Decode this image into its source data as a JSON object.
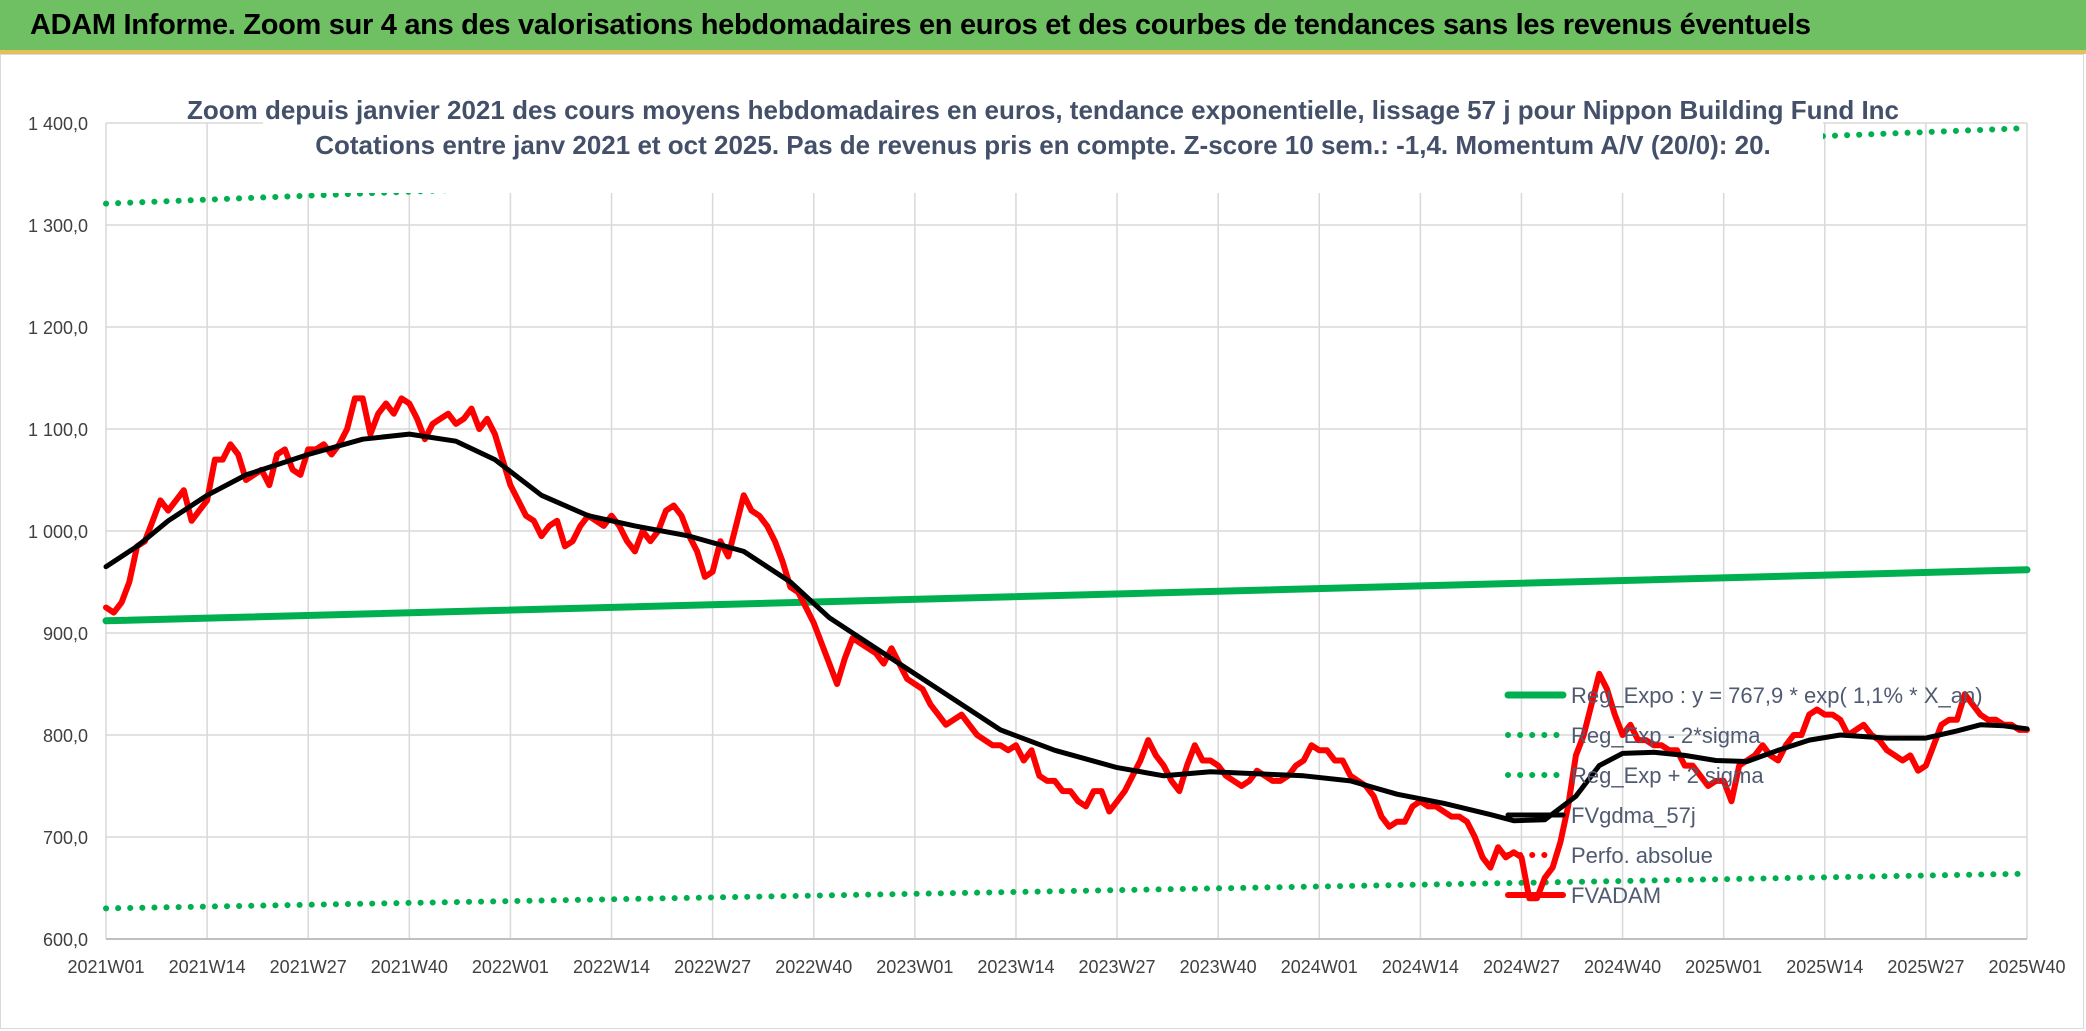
{
  "banner": {
    "title": "ADAM Informe. Zoom sur 4 ans des valorisations hebdomadaires en euros et des courbes de tendances sans les revenus éventuels"
  },
  "chart_data": {
    "type": "line",
    "title_line1": "Zoom depuis janvier 2021 des cours moyens hebdomadaires en euros, tendance exponentielle, lissage 57 j pour Nippon Building Fund Inc",
    "title_line2": "Cotations entre janv 2021 et oct 2025. Pas de revenus pris en compte. Z-score 10 sem.: -1,4. Momentum A/V (20/0): 20.",
    "ylim": [
      600,
      1400
    ],
    "y_ticks": [
      600,
      700,
      800,
      900,
      1000,
      1100,
      1200,
      1300,
      1400
    ],
    "y_tick_labels": [
      "600,0",
      "700,0",
      "800,0",
      "900,0",
      "1 000,0",
      "1 100,0",
      "1 200,0",
      "1 300,0",
      "1 400,0"
    ],
    "x_range": [
      0,
      247
    ],
    "x_ticks": [
      0,
      13,
      26,
      39,
      52,
      65,
      78,
      91,
      104,
      117,
      130,
      143,
      156,
      169,
      182,
      195,
      208,
      221,
      234,
      247
    ],
    "x_tick_labels": [
      "2021W01",
      "2021W14",
      "2021W27",
      "2021W40",
      "2022W01",
      "2022W14",
      "2022W27",
      "2022W40",
      "2023W01",
      "2023W14",
      "2023W27",
      "2023W40",
      "2024W01",
      "2024W14",
      "2024W27",
      "2024W40",
      "2025W01",
      "2025W14",
      "2025W27",
      "2025W40"
    ],
    "series": [
      {
        "name": "Reg_Expo : y = 767,9 * exp( 1,1% *  X_an)",
        "color": "#00b050",
        "style": "solid",
        "points": [
          [
            0,
            912
          ],
          [
            247,
            962
          ]
        ]
      },
      {
        "name": "Reg_Exp - 2*sigma",
        "color": "#00b050",
        "style": "dotted",
        "points": [
          [
            0,
            630
          ],
          [
            247,
            664
          ]
        ]
      },
      {
        "name": "Reg_Exp + 2 sigma",
        "color": "#00b050",
        "style": "dotted",
        "points": [
          [
            0,
            1321
          ],
          [
            247,
            1395
          ]
        ]
      },
      {
        "name": "FVgdma_57j",
        "color": "#000000",
        "style": "solid",
        "points": [
          [
            0,
            965
          ],
          [
            4,
            985
          ],
          [
            8,
            1010
          ],
          [
            13,
            1035
          ],
          [
            18,
            1055
          ],
          [
            26,
            1075
          ],
          [
            33,
            1090
          ],
          [
            39,
            1095
          ],
          [
            45,
            1088
          ],
          [
            50,
            1070
          ],
          [
            56,
            1035
          ],
          [
            62,
            1015
          ],
          [
            68,
            1005
          ],
          [
            75,
            995
          ],
          [
            82,
            980
          ],
          [
            88,
            950
          ],
          [
            93,
            915
          ],
          [
            100,
            880
          ],
          [
            108,
            840
          ],
          [
            115,
            805
          ],
          [
            122,
            785
          ],
          [
            130,
            768
          ],
          [
            136,
            760
          ],
          [
            142,
            764
          ],
          [
            148,
            762
          ],
          [
            154,
            760
          ],
          [
            160,
            755
          ],
          [
            166,
            742
          ],
          [
            172,
            733
          ],
          [
            178,
            722
          ],
          [
            181,
            716
          ],
          [
            185,
            717
          ],
          [
            189,
            740
          ],
          [
            192,
            770
          ],
          [
            195,
            782
          ],
          [
            199,
            783
          ],
          [
            203,
            780
          ],
          [
            207,
            775
          ],
          [
            211,
            774
          ],
          [
            215,
            785
          ],
          [
            219,
            795
          ],
          [
            223,
            800
          ],
          [
            229,
            797
          ],
          [
            234,
            797
          ],
          [
            238,
            804
          ],
          [
            241,
            810
          ],
          [
            244,
            809
          ],
          [
            247,
            806
          ]
        ]
      },
      {
        "name": "Perfo. absolue",
        "color": "#ff0000",
        "style": "dotted",
        "points": []
      },
      {
        "name": "FVADAM",
        "color": "#ff0000",
        "style": "thick",
        "points": [
          [
            0,
            925
          ],
          [
            1,
            920
          ],
          [
            2,
            930
          ],
          [
            3,
            950
          ],
          [
            4,
            985
          ],
          [
            5,
            990
          ],
          [
            6,
            1010
          ],
          [
            7,
            1030
          ],
          [
            8,
            1020
          ],
          [
            9,
            1030
          ],
          [
            10,
            1040
          ],
          [
            11,
            1010
          ],
          [
            12,
            1020
          ],
          [
            13,
            1030
          ],
          [
            14,
            1070
          ],
          [
            15,
            1070
          ],
          [
            16,
            1085
          ],
          [
            17,
            1075
          ],
          [
            18,
            1050
          ],
          [
            19,
            1055
          ],
          [
            20,
            1060
          ],
          [
            21,
            1045
          ],
          [
            22,
            1075
          ],
          [
            23,
            1080
          ],
          [
            24,
            1060
          ],
          [
            25,
            1055
          ],
          [
            26,
            1080
          ],
          [
            27,
            1080
          ],
          [
            28,
            1085
          ],
          [
            29,
            1075
          ],
          [
            30,
            1085
          ],
          [
            31,
            1100
          ],
          [
            32,
            1130
          ],
          [
            33,
            1130
          ],
          [
            34,
            1095
          ],
          [
            35,
            1115
          ],
          [
            36,
            1125
          ],
          [
            37,
            1115
          ],
          [
            38,
            1130
          ],
          [
            39,
            1125
          ],
          [
            40,
            1110
          ],
          [
            41,
            1090
          ],
          [
            42,
            1105
          ],
          [
            43,
            1110
          ],
          [
            44,
            1115
          ],
          [
            45,
            1105
          ],
          [
            46,
            1110
          ],
          [
            47,
            1120
          ],
          [
            48,
            1100
          ],
          [
            49,
            1110
          ],
          [
            50,
            1095
          ],
          [
            51,
            1070
          ],
          [
            52,
            1045
          ],
          [
            53,
            1030
          ],
          [
            54,
            1015
          ],
          [
            55,
            1010
          ],
          [
            56,
            995
          ],
          [
            57,
            1005
          ],
          [
            58,
            1010
          ],
          [
            59,
            985
          ],
          [
            60,
            990
          ],
          [
            61,
            1005
          ],
          [
            62,
            1015
          ],
          [
            63,
            1010
          ],
          [
            64,
            1005
          ],
          [
            65,
            1015
          ],
          [
            66,
            1005
          ],
          [
            67,
            990
          ],
          [
            68,
            980
          ],
          [
            69,
            1000
          ],
          [
            70,
            990
          ],
          [
            71,
            1000
          ],
          [
            72,
            1020
          ],
          [
            73,
            1025
          ],
          [
            74,
            1015
          ],
          [
            75,
            995
          ],
          [
            76,
            980
          ],
          [
            77,
            955
          ],
          [
            78,
            960
          ],
          [
            79,
            990
          ],
          [
            80,
            975
          ],
          [
            81,
            1005
          ],
          [
            82,
            1035
          ],
          [
            83,
            1020
          ],
          [
            84,
            1015
          ],
          [
            85,
            1005
          ],
          [
            86,
            990
          ],
          [
            87,
            970
          ],
          [
            88,
            945
          ],
          [
            89,
            940
          ],
          [
            90,
            925
          ],
          [
            91,
            910
          ],
          [
            92,
            890
          ],
          [
            93,
            870
          ],
          [
            94,
            850
          ],
          [
            95,
            875
          ],
          [
            96,
            895
          ],
          [
            97,
            890
          ],
          [
            98,
            885
          ],
          [
            99,
            880
          ],
          [
            100,
            870
          ],
          [
            101,
            885
          ],
          [
            102,
            870
          ],
          [
            103,
            855
          ],
          [
            104,
            850
          ],
          [
            105,
            845
          ],
          [
            106,
            830
          ],
          [
            107,
            820
          ],
          [
            108,
            810
          ],
          [
            109,
            815
          ],
          [
            110,
            820
          ],
          [
            111,
            810
          ],
          [
            112,
            800
          ],
          [
            113,
            795
          ],
          [
            114,
            790
          ],
          [
            115,
            790
          ],
          [
            116,
            785
          ],
          [
            117,
            790
          ],
          [
            118,
            775
          ],
          [
            119,
            785
          ],
          [
            120,
            760
          ],
          [
            121,
            755
          ],
          [
            122,
            755
          ],
          [
            123,
            745
          ],
          [
            124,
            745
          ],
          [
            125,
            735
          ],
          [
            126,
            730
          ],
          [
            127,
            745
          ],
          [
            128,
            745
          ],
          [
            129,
            725
          ],
          [
            130,
            735
          ],
          [
            131,
            745
          ],
          [
            132,
            760
          ],
          [
            133,
            775
          ],
          [
            134,
            795
          ],
          [
            135,
            780
          ],
          [
            136,
            770
          ],
          [
            137,
            755
          ],
          [
            138,
            745
          ],
          [
            139,
            770
          ],
          [
            140,
            790
          ],
          [
            141,
            775
          ],
          [
            142,
            775
          ],
          [
            143,
            770
          ],
          [
            144,
            760
          ],
          [
            145,
            755
          ],
          [
            146,
            750
          ],
          [
            147,
            755
          ],
          [
            148,
            765
          ],
          [
            149,
            760
          ],
          [
            150,
            755
          ],
          [
            151,
            755
          ],
          [
            152,
            760
          ],
          [
            153,
            770
          ],
          [
            154,
            775
          ],
          [
            155,
            790
          ],
          [
            156,
            785
          ],
          [
            157,
            785
          ],
          [
            158,
            775
          ],
          [
            159,
            775
          ],
          [
            160,
            760
          ],
          [
            161,
            755
          ],
          [
            162,
            750
          ],
          [
            163,
            740
          ],
          [
            164,
            720
          ],
          [
            165,
            710
          ],
          [
            166,
            715
          ],
          [
            167,
            715
          ],
          [
            168,
            730
          ],
          [
            169,
            735
          ],
          [
            170,
            730
          ],
          [
            171,
            730
          ],
          [
            172,
            725
          ],
          [
            173,
            720
          ],
          [
            174,
            720
          ],
          [
            175,
            715
          ],
          [
            176,
            700
          ],
          [
            177,
            680
          ],
          [
            178,
            670
          ],
          [
            179,
            690
          ],
          [
            180,
            680
          ],
          [
            181,
            685
          ],
          [
            182,
            680
          ],
          [
            183,
            640
          ],
          [
            184,
            640
          ],
          [
            185,
            660
          ],
          [
            186,
            670
          ],
          [
            187,
            695
          ],
          [
            188,
            730
          ],
          [
            189,
            780
          ],
          [
            190,
            800
          ],
          [
            191,
            830
          ],
          [
            192,
            860
          ],
          [
            193,
            845
          ],
          [
            194,
            820
          ],
          [
            195,
            800
          ],
          [
            196,
            810
          ],
          [
            197,
            795
          ],
          [
            198,
            795
          ],
          [
            199,
            790
          ],
          [
            200,
            790
          ],
          [
            201,
            785
          ],
          [
            202,
            785
          ],
          [
            203,
            770
          ],
          [
            204,
            770
          ],
          [
            205,
            760
          ],
          [
            206,
            750
          ],
          [
            207,
            755
          ],
          [
            208,
            755
          ],
          [
            209,
            735
          ],
          [
            210,
            770
          ],
          [
            211,
            775
          ],
          [
            212,
            780
          ],
          [
            213,
            790
          ],
          [
            214,
            780
          ],
          [
            215,
            775
          ],
          [
            216,
            790
          ],
          [
            217,
            800
          ],
          [
            218,
            800
          ],
          [
            219,
            820
          ],
          [
            220,
            825
          ],
          [
            221,
            820
          ],
          [
            222,
            820
          ],
          [
            223,
            815
          ],
          [
            224,
            800
          ],
          [
            225,
            805
          ],
          [
            226,
            810
          ],
          [
            227,
            800
          ],
          [
            228,
            795
          ],
          [
            229,
            785
          ],
          [
            230,
            780
          ],
          [
            231,
            775
          ],
          [
            232,
            780
          ],
          [
            233,
            765
          ],
          [
            234,
            770
          ],
          [
            235,
            790
          ],
          [
            236,
            810
          ],
          [
            237,
            815
          ],
          [
            238,
            815
          ],
          [
            239,
            840
          ],
          [
            240,
            830
          ],
          [
            241,
            820
          ],
          [
            242,
            815
          ],
          [
            243,
            815
          ],
          [
            244,
            810
          ],
          [
            245,
            810
          ],
          [
            246,
            805
          ],
          [
            247,
            805
          ]
        ]
      }
    ],
    "legend_position": "right"
  }
}
